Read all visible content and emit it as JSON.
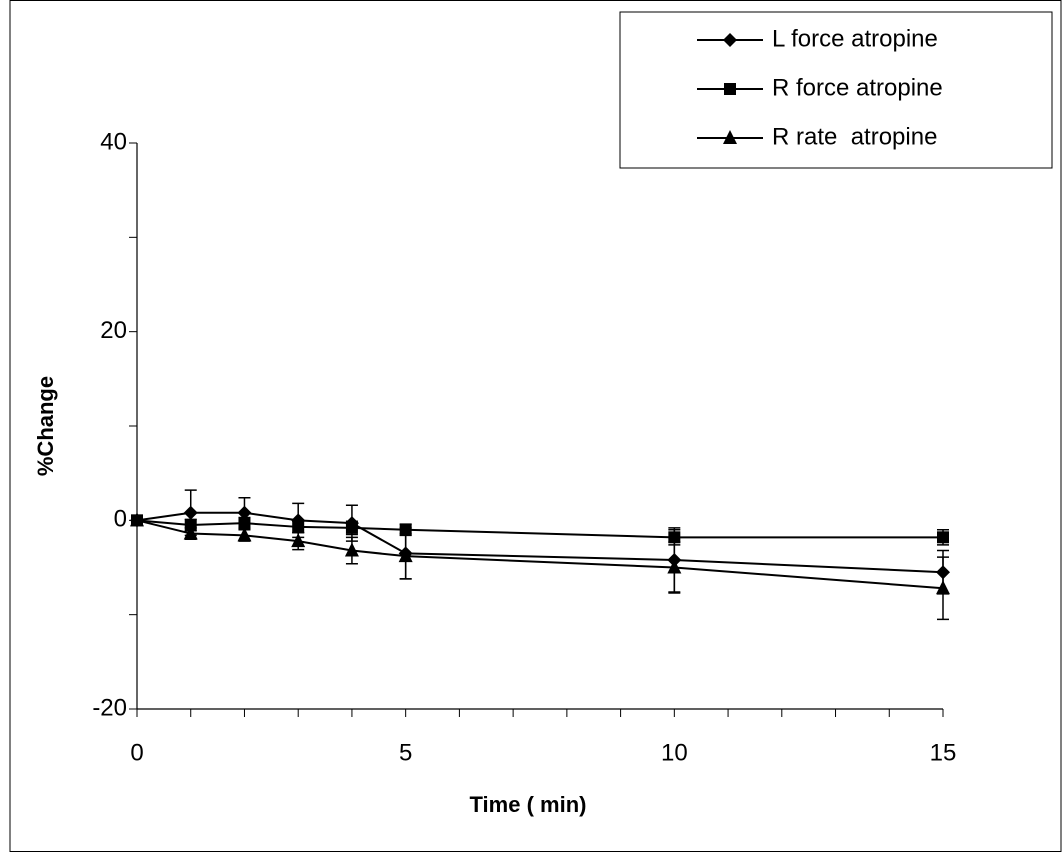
{
  "chart_data": {
    "type": "line",
    "x_label": "Time ( min)",
    "y_label": "%Change",
    "x": [
      0,
      1,
      2,
      3,
      4,
      5,
      10,
      15
    ],
    "series": [
      {
        "name": "L force atropine",
        "color": "#000000",
        "marker": "diamond",
        "values": [
          0,
          0.8,
          0.8,
          0,
          -0.3,
          -3.5,
          -4.2,
          -5.5
        ],
        "errors": [
          0,
          2.4,
          1.6,
          1.8,
          1.9,
          2.7,
          3.4,
          2.3
        ]
      },
      {
        "name": "R force atropine",
        "color": "#000000",
        "marker": "square",
        "values": [
          0,
          -0.5,
          -0.3,
          -0.7,
          -0.8,
          -1.0,
          -1.8,
          -1.8
        ],
        "errors": [
          0,
          0.6,
          0.6,
          0.6,
          0.7,
          0.6,
          0.8,
          0.8
        ]
      },
      {
        "name": "R rate  atropine",
        "color": "#000000",
        "marker": "triangle",
        "values": [
          0,
          -1.4,
          -1.6,
          -2.2,
          -3.2,
          -3.8,
          -5.0,
          -7.2
        ],
        "errors": [
          0,
          0.6,
          0.6,
          0.9,
          1.4,
          2.4,
          2.7,
          3.3
        ]
      }
    ],
    "xlim": [
      0,
      15
    ],
    "xticks": [
      0,
      5,
      10,
      15
    ],
    "xminorticks": [
      1,
      2,
      3,
      4,
      6,
      7,
      8,
      9,
      11,
      12,
      13,
      14
    ],
    "ylim": [
      -20,
      40
    ],
    "yticks": [
      -20,
      0,
      20,
      40
    ],
    "yminorticks": [
      -10,
      10,
      30
    ],
    "grid": false,
    "legend": "top-right"
  }
}
